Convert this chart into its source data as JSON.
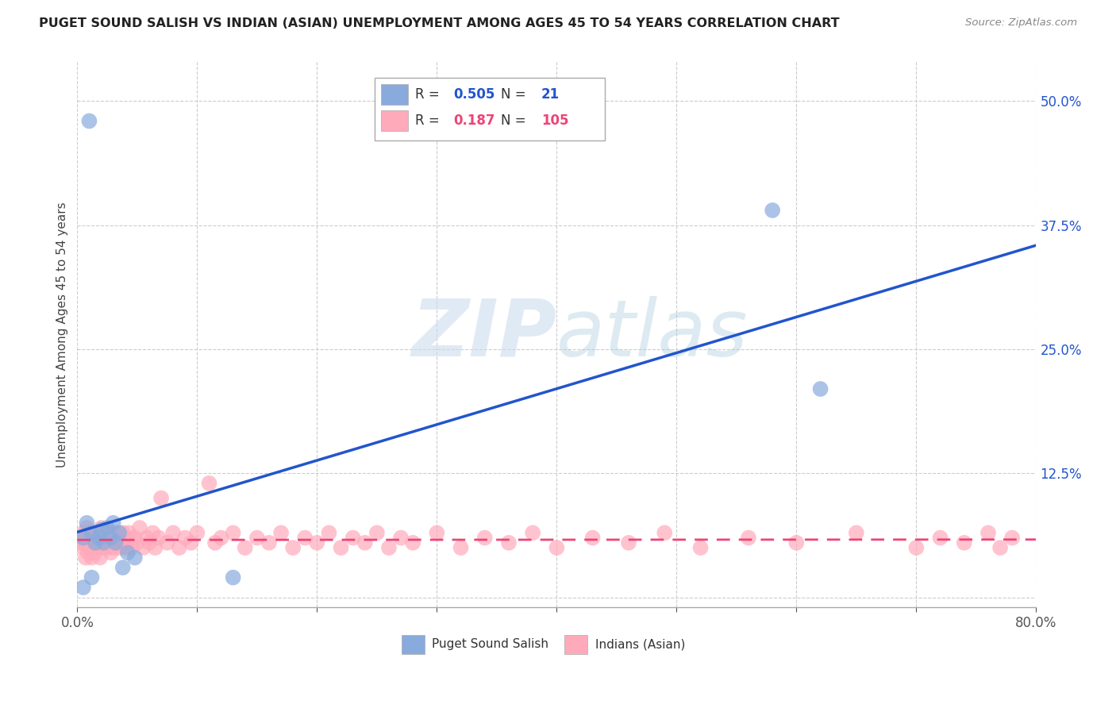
{
  "title": "PUGET SOUND SALISH VS INDIAN (ASIAN) UNEMPLOYMENT AMONG AGES 45 TO 54 YEARS CORRELATION CHART",
  "source": "Source: ZipAtlas.com",
  "ylabel": "Unemployment Among Ages 45 to 54 years",
  "xlim": [
    0.0,
    0.8
  ],
  "ylim": [
    -0.01,
    0.54
  ],
  "xticks": [
    0.0,
    0.1,
    0.2,
    0.3,
    0.4,
    0.5,
    0.6,
    0.7,
    0.8
  ],
  "xticklabels": [
    "0.0%",
    "",
    "",
    "",
    "",
    "",
    "",
    "",
    "80.0%"
  ],
  "yticks_right": [
    0.0,
    0.125,
    0.25,
    0.375,
    0.5
  ],
  "ytick_labels_right": [
    "",
    "12.5%",
    "25.0%",
    "37.5%",
    "50.0%"
  ],
  "grid_color": "#cccccc",
  "bg_color": "#ffffff",
  "blue_color": "#88aadd",
  "pink_color": "#ffaabb",
  "blue_line_color": "#2255cc",
  "pink_line_color": "#ee4477",
  "legend_R1": "0.505",
  "legend_N1": "21",
  "legend_R2": "0.187",
  "legend_N2": "105",
  "legend_label1": "Puget Sound Salish",
  "legend_label2": "Indians (Asian)",
  "watermark_zip": "ZIP",
  "watermark_atlas": "atlas",
  "salish_x": [
    0.01,
    0.005,
    0.008,
    0.012,
    0.015,
    0.018,
    0.02,
    0.022,
    0.025,
    0.028,
    0.03,
    0.032,
    0.035,
    0.038,
    0.042,
    0.048,
    0.005,
    0.012,
    0.13,
    0.58,
    0.62
  ],
  "salish_y": [
    0.48,
    0.06,
    0.075,
    0.065,
    0.055,
    0.06,
    0.068,
    0.055,
    0.07,
    0.06,
    0.075,
    0.055,
    0.065,
    0.03,
    0.045,
    0.04,
    0.01,
    0.02,
    0.02,
    0.39,
    0.21
  ],
  "indian_x": [
    0.003,
    0.004,
    0.005,
    0.005,
    0.006,
    0.007,
    0.007,
    0.008,
    0.008,
    0.009,
    0.01,
    0.01,
    0.011,
    0.012,
    0.012,
    0.013,
    0.014,
    0.015,
    0.015,
    0.016,
    0.017,
    0.018,
    0.018,
    0.019,
    0.02,
    0.02,
    0.021,
    0.022,
    0.022,
    0.023,
    0.024,
    0.025,
    0.025,
    0.026,
    0.027,
    0.028,
    0.028,
    0.029,
    0.03,
    0.03,
    0.032,
    0.033,
    0.035,
    0.035,
    0.037,
    0.038,
    0.04,
    0.04,
    0.042,
    0.043,
    0.045,
    0.048,
    0.05,
    0.052,
    0.055,
    0.058,
    0.06,
    0.063,
    0.065,
    0.068,
    0.07,
    0.075,
    0.08,
    0.085,
    0.09,
    0.095,
    0.1,
    0.11,
    0.115,
    0.12,
    0.13,
    0.14,
    0.15,
    0.16,
    0.17,
    0.18,
    0.19,
    0.2,
    0.21,
    0.22,
    0.23,
    0.24,
    0.25,
    0.26,
    0.27,
    0.28,
    0.3,
    0.32,
    0.34,
    0.36,
    0.38,
    0.4,
    0.43,
    0.46,
    0.49,
    0.52,
    0.56,
    0.6,
    0.65,
    0.7,
    0.72,
    0.74,
    0.76,
    0.77,
    0.78
  ],
  "indian_y": [
    0.055,
    0.06,
    0.05,
    0.065,
    0.055,
    0.06,
    0.04,
    0.055,
    0.07,
    0.045,
    0.06,
    0.05,
    0.065,
    0.055,
    0.04,
    0.06,
    0.05,
    0.065,
    0.045,
    0.055,
    0.06,
    0.05,
    0.065,
    0.04,
    0.055,
    0.07,
    0.06,
    0.05,
    0.065,
    0.055,
    0.06,
    0.05,
    0.065,
    0.055,
    0.06,
    0.045,
    0.065,
    0.055,
    0.06,
    0.05,
    0.055,
    0.065,
    0.05,
    0.06,
    0.055,
    0.065,
    0.05,
    0.06,
    0.055,
    0.065,
    0.05,
    0.06,
    0.055,
    0.07,
    0.05,
    0.06,
    0.055,
    0.065,
    0.05,
    0.06,
    0.1,
    0.055,
    0.065,
    0.05,
    0.06,
    0.055,
    0.065,
    0.115,
    0.055,
    0.06,
    0.065,
    0.05,
    0.06,
    0.055,
    0.065,
    0.05,
    0.06,
    0.055,
    0.065,
    0.05,
    0.06,
    0.055,
    0.065,
    0.05,
    0.06,
    0.055,
    0.065,
    0.05,
    0.06,
    0.055,
    0.065,
    0.05,
    0.06,
    0.055,
    0.065,
    0.05,
    0.06,
    0.055,
    0.065,
    0.05,
    0.06,
    0.055,
    0.065,
    0.05,
    0.06
  ]
}
